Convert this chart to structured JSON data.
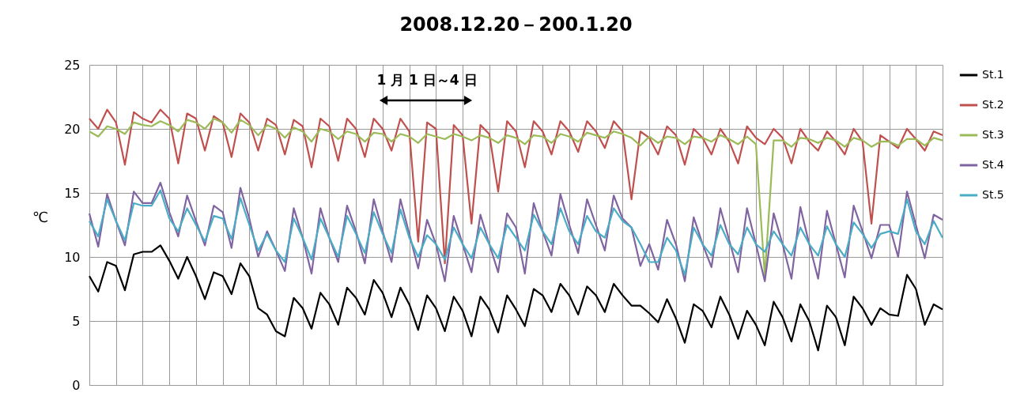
{
  "chart_data": {
    "type": "line",
    "title": "2008.12.20－200.1.20",
    "ylabel": "℃",
    "categories": [
      null,
      null,
      null,
      null,
      null,
      null,
      null,
      null,
      null,
      null,
      null,
      null,
      null,
      null,
      null,
      null,
      null,
      null,
      null,
      null,
      null,
      null,
      null,
      null,
      null,
      null,
      null,
      null,
      null,
      null,
      null,
      null,
      null,
      null,
      null,
      null,
      null,
      null,
      null,
      null,
      null,
      null,
      null,
      null,
      null,
      null,
      null,
      null,
      null,
      null,
      null,
      null,
      null,
      null,
      null,
      null,
      null,
      null,
      null,
      null,
      null,
      null,
      null,
      null,
      null,
      null,
      null,
      null,
      null,
      null,
      null,
      null,
      null,
      null,
      null,
      null,
      null,
      null,
      null,
      null,
      null,
      null,
      null,
      null,
      null,
      null,
      null,
      null,
      null,
      null,
      null,
      null,
      null,
      null,
      null,
      null,
      null
    ],
    "series": [
      {
        "name": "St.1",
        "color": "#000000",
        "values": [
          8.5,
          7.3,
          9.6,
          9.3,
          7.4,
          10.2,
          10.4,
          10.4,
          10.9,
          9.7,
          8.3,
          10.0,
          8.5,
          6.7,
          8.8,
          8.5,
          7.1,
          9.5,
          8.5,
          6.0,
          5.5,
          4.2,
          3.8,
          6.8,
          6.0,
          4.4,
          7.2,
          6.3,
          4.7,
          7.6,
          6.8,
          5.5,
          8.2,
          7.2,
          5.3,
          7.6,
          6.3,
          4.3,
          7.0,
          6.0,
          4.2,
          6.9,
          5.8,
          3.8,
          6.9,
          5.9,
          4.1,
          7.0,
          5.9,
          4.6,
          7.5,
          7.0,
          5.7,
          7.9,
          7.0,
          5.5,
          7.7,
          7.0,
          5.7,
          7.9,
          7.0,
          6.2,
          6.2,
          5.6,
          4.9,
          6.7,
          5.2,
          3.3,
          6.3,
          5.8,
          4.5,
          6.9,
          5.5,
          3.6,
          5.8,
          4.7,
          3.1,
          6.5,
          5.3,
          3.4,
          6.3,
          5.0,
          2.7,
          6.2,
          5.3,
          3.1,
          6.9,
          6.0,
          4.7,
          6.0,
          5.5,
          5.4,
          8.6,
          7.5,
          4.7,
          6.3,
          5.9
        ]
      },
      {
        "name": "St.2",
        "color": "#c0504d",
        "values": [
          20.8,
          20.0,
          21.5,
          20.5,
          17.2,
          21.3,
          20.8,
          20.5,
          21.5,
          20.8,
          17.3,
          21.2,
          20.8,
          18.3,
          21.0,
          20.5,
          17.8,
          21.2,
          20.5,
          18.3,
          20.8,
          20.3,
          18.0,
          20.7,
          20.2,
          17.0,
          20.8,
          20.2,
          17.5,
          20.8,
          20.0,
          17.8,
          20.8,
          20.0,
          18.3,
          20.8,
          19.8,
          11.2,
          20.5,
          20.0,
          9.5,
          20.3,
          19.5,
          12.6,
          20.3,
          19.6,
          15.1,
          20.6,
          19.8,
          17.0,
          20.6,
          19.8,
          18.0,
          20.6,
          19.8,
          18.2,
          20.6,
          19.8,
          18.5,
          20.6,
          19.8,
          14.5,
          19.8,
          19.3,
          18.0,
          20.2,
          19.5,
          17.2,
          20.0,
          19.3,
          18.0,
          20.0,
          19.0,
          17.3,
          20.2,
          19.3,
          18.8,
          20.0,
          19.3,
          17.3,
          20.0,
          19.0,
          18.3,
          19.8,
          19.0,
          18.0,
          20.0,
          19.0,
          12.6,
          19.5,
          19.0,
          18.5,
          20.0,
          19.2,
          18.3,
          19.8,
          19.5
        ]
      },
      {
        "name": "St.3",
        "color": "#9bbb59",
        "values": [
          19.8,
          19.4,
          20.2,
          20.0,
          19.6,
          20.5,
          20.3,
          20.2,
          20.6,
          20.3,
          19.8,
          20.7,
          20.5,
          20.0,
          20.8,
          20.5,
          19.7,
          20.7,
          20.3,
          19.5,
          20.3,
          20.0,
          19.3,
          20.1,
          19.8,
          19.0,
          20.0,
          19.8,
          19.2,
          19.8,
          19.6,
          19.0,
          19.7,
          19.6,
          19.0,
          19.6,
          19.4,
          18.9,
          19.6,
          19.4,
          19.2,
          19.6,
          19.4,
          19.1,
          19.5,
          19.3,
          18.9,
          19.5,
          19.3,
          18.8,
          19.5,
          19.4,
          18.9,
          19.6,
          19.4,
          19.0,
          19.7,
          19.5,
          19.3,
          19.8,
          19.6,
          19.3,
          18.7,
          19.4,
          18.9,
          19.4,
          19.3,
          18.8,
          19.4,
          19.3,
          19.0,
          19.5,
          19.2,
          18.8,
          19.4,
          18.8,
          8.5,
          19.1,
          19.1,
          18.6,
          19.3,
          19.2,
          18.9,
          19.3,
          19.1,
          18.6,
          19.3,
          19.1,
          18.6,
          19.0,
          19.0,
          18.7,
          19.2,
          19.2,
          18.7,
          19.3,
          19.1
        ]
      },
      {
        "name": "St.4",
        "color": "#8064a2",
        "values": [
          13.4,
          10.8,
          14.9,
          12.8,
          10.9,
          15.1,
          14.2,
          14.2,
          15.8,
          13.5,
          11.6,
          14.8,
          12.8,
          10.9,
          14.0,
          13.5,
          10.7,
          15.4,
          13.0,
          10.0,
          12.0,
          10.5,
          8.9,
          13.8,
          11.5,
          8.7,
          13.8,
          11.5,
          9.6,
          14.0,
          12.0,
          9.5,
          14.5,
          12.0,
          9.6,
          14.5,
          11.8,
          9.1,
          12.9,
          11.0,
          8.1,
          13.2,
          11.0,
          8.8,
          13.3,
          11.0,
          8.8,
          13.4,
          12.3,
          8.7,
          14.2,
          12.0,
          10.1,
          14.9,
          12.5,
          10.3,
          14.5,
          12.5,
          10.5,
          14.8,
          13.0,
          12.3,
          9.3,
          11.0,
          9.0,
          12.9,
          11.0,
          8.1,
          13.1,
          11.0,
          9.2,
          13.8,
          11.3,
          8.8,
          13.8,
          11.0,
          8.1,
          13.4,
          11.0,
          8.3,
          13.9,
          11.0,
          8.3,
          13.6,
          11.0,
          8.4,
          14.0,
          12.0,
          9.9,
          12.5,
          12.5,
          10.0,
          15.1,
          12.5,
          9.9,
          13.3,
          12.9
        ]
      },
      {
        "name": "St.5",
        "color": "#4bacc6",
        "values": [
          12.8,
          11.6,
          14.5,
          12.8,
          11.3,
          14.2,
          14.0,
          14.0,
          15.2,
          13.0,
          12.0,
          13.8,
          12.5,
          11.2,
          13.2,
          13.0,
          11.4,
          14.6,
          12.5,
          10.5,
          11.8,
          10.5,
          9.6,
          13.0,
          11.5,
          9.8,
          13.0,
          11.5,
          10.0,
          13.2,
          11.8,
          10.3,
          13.5,
          11.8,
          10.3,
          13.7,
          11.5,
          10.0,
          11.7,
          11.0,
          9.8,
          12.3,
          11.0,
          9.9,
          12.3,
          11.0,
          9.9,
          12.5,
          11.5,
          10.5,
          13.3,
          12.0,
          11.0,
          13.8,
          12.0,
          11.0,
          13.2,
          12.0,
          11.5,
          13.8,
          12.8,
          12.3,
          11.0,
          9.6,
          9.6,
          11.5,
          10.5,
          8.6,
          12.3,
          11.0,
          10.1,
          12.5,
          11.0,
          10.2,
          12.3,
          11.0,
          10.4,
          12.0,
          11.0,
          10.1,
          12.3,
          11.0,
          10.1,
          12.4,
          11.0,
          10.0,
          12.7,
          11.8,
          10.7,
          11.8,
          12.0,
          11.8,
          14.5,
          12.0,
          11.0,
          12.8,
          11.5
        ]
      }
    ],
    "ylim": [
      0,
      25
    ],
    "yticks": [
      0,
      5,
      10,
      15,
      20,
      25
    ],
    "grid": true,
    "legend": "right",
    "tick_labels": "y",
    "marker": "none",
    "line_style": "solid",
    "annotations": [
      "1 月 1 日～4 日"
    ]
  }
}
